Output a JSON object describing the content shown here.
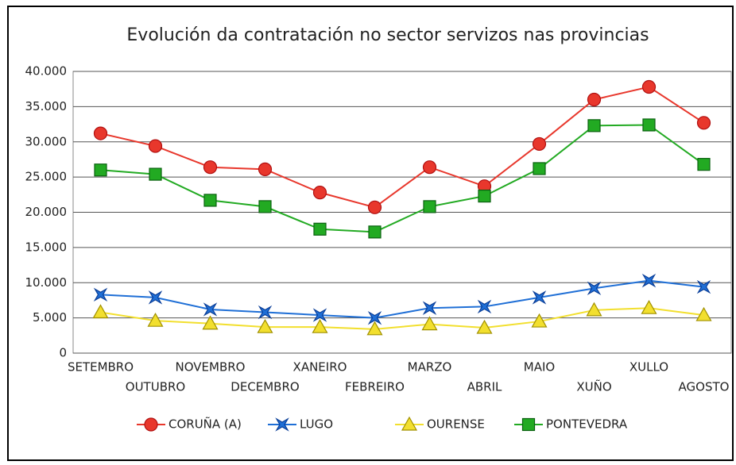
{
  "chart_data": {
    "type": "line",
    "title": "Evolución da contratación no sector servizos nas provincias",
    "categories": [
      "SETEMBRO",
      "OUTUBRO",
      "NOVEMBRO",
      "DECEMBRO",
      "XANEIRO",
      "FEBREIRO",
      "MARZO",
      "ABRIL",
      "MAIO",
      "XUÑO",
      "XULLO",
      "AGOSTO"
    ],
    "series": [
      {
        "name": "CORUÑA (A)",
        "color": "#e8372c",
        "marker": "circle",
        "values": [
          31200,
          29400,
          26400,
          26100,
          22800,
          20700,
          26400,
          23700,
          29700,
          36000,
          37800,
          32700
        ]
      },
      {
        "name": "LUGO",
        "color": "#1f6fd6",
        "marker": "star",
        "values": [
          8300,
          7900,
          6200,
          5800,
          5400,
          5000,
          6400,
          6600,
          7900,
          9200,
          10300,
          9400
        ]
      },
      {
        "name": "OURENSE",
        "color": "#f2df2e",
        "marker": "triangle",
        "values": [
          5800,
          4600,
          4200,
          3700,
          3700,
          3400,
          4100,
          3600,
          4500,
          6100,
          6400,
          5400
        ]
      },
      {
        "name": "PONTEVEDRA",
        "color": "#22aa22",
        "marker": "square",
        "values": [
          26000,
          25400,
          21700,
          20800,
          17600,
          17200,
          20800,
          22300,
          26200,
          32300,
          32400,
          26800
        ]
      }
    ],
    "ylim": [
      0,
      40000
    ],
    "yticks": [
      0,
      {
        "value": 5000,
        "label": "5.000"
      },
      {
        "value": 10000,
        "label": "10.000"
      },
      {
        "value": 15000,
        "label": "15.000"
      },
      {
        "value": 20000,
        "label": "20.000"
      },
      {
        "value": 25000,
        "label": "25.000"
      },
      {
        "value": 30000,
        "label": "30.000"
      },
      {
        "value": 35000,
        "label": "35.000"
      },
      {
        "value": 40000,
        "label": "40.000"
      }
    ],
    "grid": true,
    "legend": "bottom"
  }
}
